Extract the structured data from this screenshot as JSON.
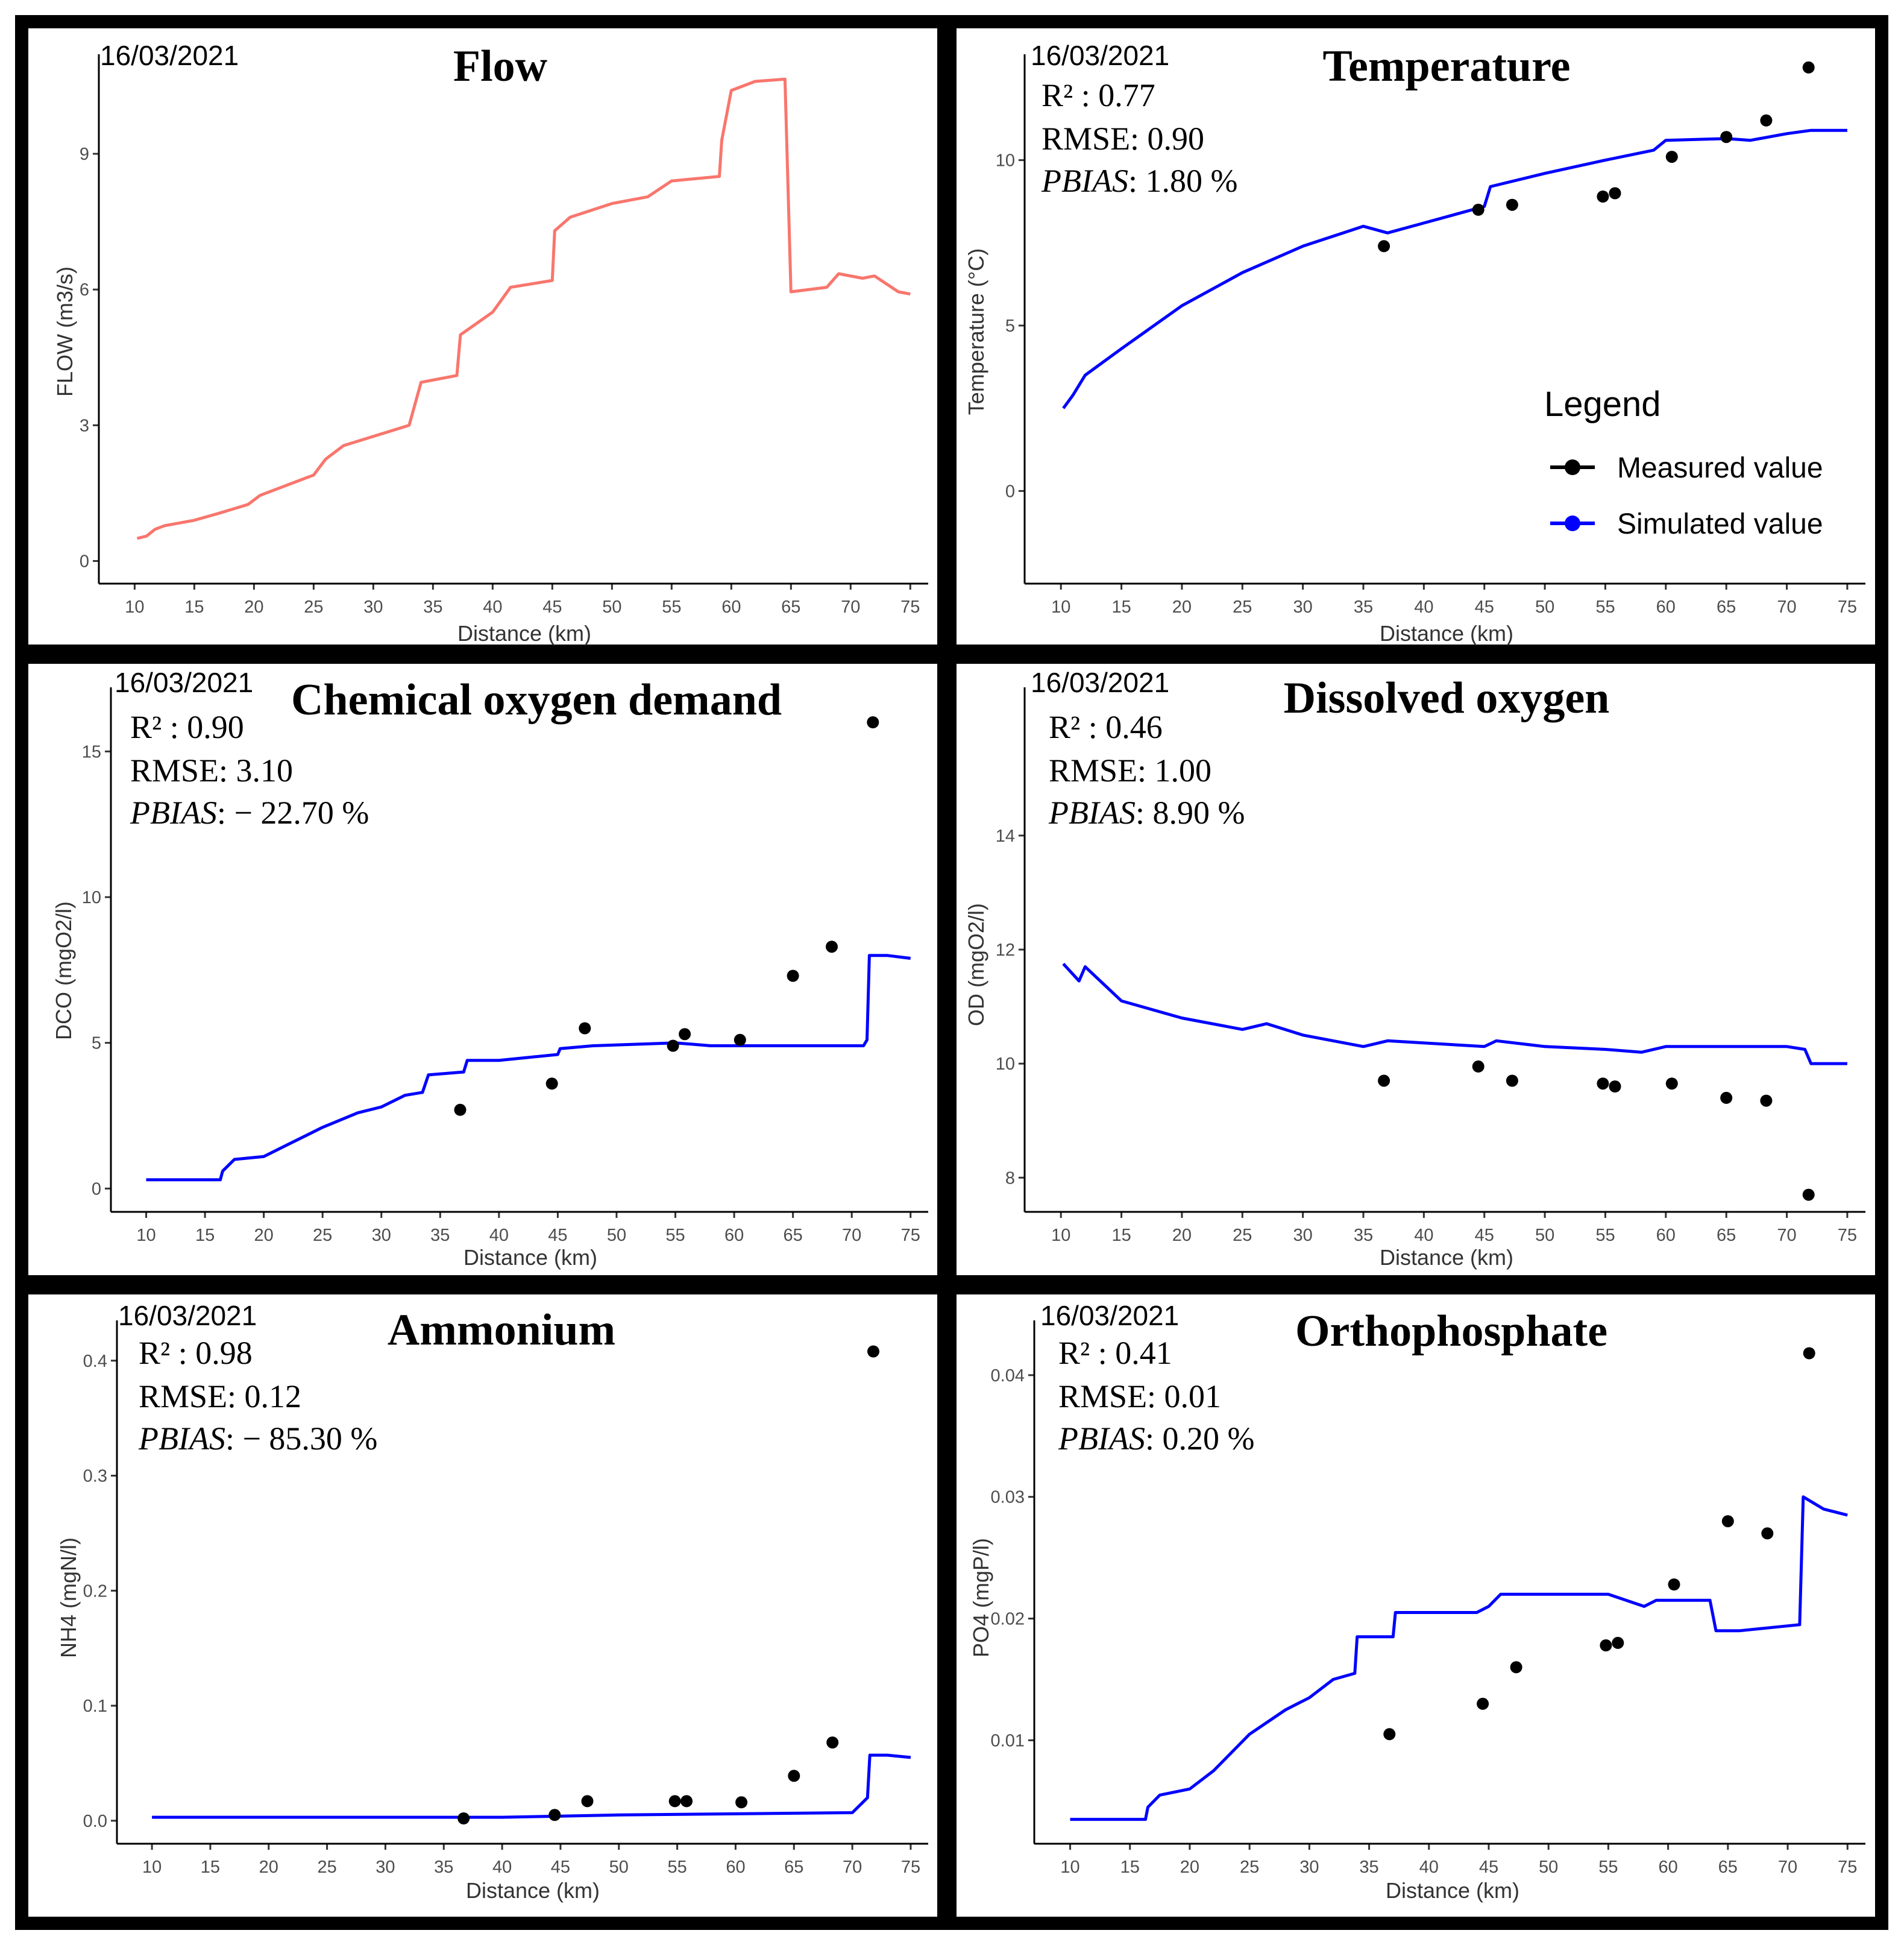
{
  "figure": {
    "background": "#ffffff",
    "border_color": "#000000",
    "simulated_color": "#0000ff",
    "flow_color": "#f8766d",
    "measured_color": "#000000",
    "legend": {
      "title": "Legend",
      "measured_label": "Measured value",
      "simulated_label": "Simulated value"
    }
  },
  "chart_data": [
    {
      "id": "flow",
      "type": "line",
      "title": "Flow",
      "date": "16/03/2021",
      "xlabel": "Distance (km)",
      "ylabel": "FLOW (m3/s)",
      "xlim": [
        7,
        76.5
      ],
      "ylim": [
        -0.5,
        11.2
      ],
      "xticks": [
        10,
        15,
        20,
        25,
        30,
        35,
        40,
        45,
        50,
        55,
        60,
        65,
        70,
        75
      ],
      "yticks": [
        0,
        3,
        6,
        9
      ],
      "stats": null,
      "simulated": [
        [
          10.2,
          0.5
        ],
        [
          11,
          0.55
        ],
        [
          11.7,
          0.7
        ],
        [
          12.5,
          0.78
        ],
        [
          15,
          0.9
        ],
        [
          17,
          1.05
        ],
        [
          19.5,
          1.25
        ],
        [
          20.5,
          1.45
        ],
        [
          25,
          1.9
        ],
        [
          26,
          2.25
        ],
        [
          27.5,
          2.55
        ],
        [
          33,
          3.0
        ],
        [
          34,
          3.95
        ],
        [
          37,
          4.1
        ],
        [
          37.3,
          5.0
        ],
        [
          40,
          5.5
        ],
        [
          41.5,
          6.05
        ],
        [
          45,
          6.2
        ],
        [
          45.2,
          7.3
        ],
        [
          46.5,
          7.6
        ],
        [
          50,
          7.9
        ],
        [
          53,
          8.05
        ],
        [
          55,
          8.4
        ],
        [
          59,
          8.5
        ],
        [
          59.2,
          9.3
        ],
        [
          60,
          10.4
        ],
        [
          62,
          10.6
        ],
        [
          64.5,
          10.65
        ],
        [
          65,
          5.95
        ],
        [
          68,
          6.05
        ],
        [
          69,
          6.35
        ],
        [
          71,
          6.25
        ],
        [
          72,
          6.3
        ],
        [
          74,
          5.95
        ],
        [
          75,
          5.9
        ]
      ],
      "measured": []
    },
    {
      "id": "temperature",
      "type": "line+scatter",
      "title": "Temperature",
      "date": "16/03/2021",
      "xlabel": "Distance (km)",
      "ylabel": "Temperature (°C)",
      "xlim": [
        7,
        76.5
      ],
      "ylim": [
        -2.8,
        13.2
      ],
      "xticks": [
        10,
        15,
        20,
        25,
        30,
        35,
        40,
        45,
        50,
        55,
        60,
        65,
        70,
        75
      ],
      "yticks": [
        0,
        5,
        10
      ],
      "stats": {
        "r2": "R² : 0.77",
        "rmse": "RMSE: 0.90",
        "pbias_label": "PBIAS",
        "pbias_value": ": 1.80 %"
      },
      "simulated": [
        [
          10.2,
          2.5
        ],
        [
          11,
          2.9
        ],
        [
          12,
          3.5
        ],
        [
          15,
          4.3
        ],
        [
          20,
          5.6
        ],
        [
          25,
          6.6
        ],
        [
          30,
          7.4
        ],
        [
          35,
          8.0
        ],
        [
          37,
          7.8
        ],
        [
          40,
          8.1
        ],
        [
          45,
          8.6
        ],
        [
          45.5,
          9.2
        ],
        [
          50,
          9.6
        ],
        [
          55,
          10.0
        ],
        [
          59,
          10.3
        ],
        [
          60,
          10.6
        ],
        [
          65,
          10.65
        ],
        [
          67,
          10.6
        ],
        [
          70,
          10.8
        ],
        [
          72,
          10.9
        ],
        [
          75,
          10.9
        ]
      ],
      "measured": [
        [
          36.7,
          7.4
        ],
        [
          44.5,
          8.5
        ],
        [
          47.3,
          8.65
        ],
        [
          54.8,
          8.9
        ],
        [
          55.8,
          9.0
        ],
        [
          60.5,
          10.1
        ],
        [
          65,
          10.7
        ],
        [
          68.3,
          11.2
        ],
        [
          71.8,
          12.8
        ]
      ]
    },
    {
      "id": "cod",
      "type": "line+scatter",
      "title": "Chemical  oxygen  demand",
      "date": "16/03/2021",
      "xlabel": "Distance (km)",
      "ylabel": "DCO (mgO2/l)",
      "xlim": [
        7,
        76.5
      ],
      "ylim": [
        -0.8,
        17.2
      ],
      "xticks": [
        10,
        15,
        20,
        25,
        30,
        35,
        40,
        45,
        50,
        55,
        60,
        65,
        70,
        75
      ],
      "yticks": [
        0,
        5,
        10,
        15
      ],
      "stats": {
        "r2": "R² : 0.90",
        "rmse": "RMSE: 3.10",
        "pbias_label": "PBIAS",
        "pbias_value": ": − 22.70 %"
      },
      "simulated": [
        [
          10,
          0.3
        ],
        [
          16.3,
          0.3
        ],
        [
          16.5,
          0.6
        ],
        [
          17.5,
          1.0
        ],
        [
          20,
          1.1
        ],
        [
          22,
          1.5
        ],
        [
          25,
          2.1
        ],
        [
          28,
          2.6
        ],
        [
          30,
          2.8
        ],
        [
          32,
          3.2
        ],
        [
          33.5,
          3.3
        ],
        [
          34,
          3.9
        ],
        [
          37,
          4.0
        ],
        [
          37.3,
          4.4
        ],
        [
          40,
          4.4
        ],
        [
          45,
          4.6
        ],
        [
          45.2,
          4.8
        ],
        [
          48,
          4.9
        ],
        [
          55,
          5.0
        ],
        [
          58,
          4.9
        ],
        [
          60,
          4.9
        ],
        [
          71,
          4.9
        ],
        [
          71.3,
          5.1
        ],
        [
          71.5,
          8.0
        ],
        [
          73,
          8.0
        ],
        [
          75,
          7.9
        ]
      ],
      "measured": [
        [
          36.7,
          2.7
        ],
        [
          44.5,
          3.6
        ],
        [
          47.3,
          5.5
        ],
        [
          54.8,
          4.9
        ],
        [
          55.8,
          5.3
        ],
        [
          60.5,
          5.1
        ],
        [
          65,
          7.3
        ],
        [
          68.3,
          8.3
        ],
        [
          71.8,
          16.0
        ]
      ]
    },
    {
      "id": "do",
      "type": "line+scatter",
      "title": "Dissolved  oxygen",
      "date": "16/03/2021",
      "xlabel": "Distance (km)",
      "ylabel": "OD (mgO2/l)",
      "xlim": [
        7,
        76.5
      ],
      "ylim": [
        7.4,
        16.6
      ],
      "xticks": [
        10,
        15,
        20,
        25,
        30,
        35,
        40,
        45,
        50,
        55,
        60,
        65,
        70,
        75
      ],
      "yticks": [
        8,
        10,
        12,
        14
      ],
      "stats": {
        "r2": "R² : 0.46",
        "rmse": "RMSE: 1.00",
        "pbias_label": "PBIAS",
        "pbias_value": ": 8.90 %"
      },
      "simulated": [
        [
          10.2,
          11.75
        ],
        [
          11.5,
          11.45
        ],
        [
          12,
          11.7
        ],
        [
          15,
          11.1
        ],
        [
          20,
          10.8
        ],
        [
          25,
          10.6
        ],
        [
          27,
          10.7
        ],
        [
          30,
          10.5
        ],
        [
          35,
          10.3
        ],
        [
          37,
          10.4
        ],
        [
          45,
          10.3
        ],
        [
          46,
          10.4
        ],
        [
          50,
          10.3
        ],
        [
          55,
          10.25
        ],
        [
          58,
          10.2
        ],
        [
          60,
          10.3
        ],
        [
          70,
          10.3
        ],
        [
          71.5,
          10.25
        ],
        [
          72,
          10.0
        ],
        [
          75,
          10.0
        ]
      ],
      "measured": [
        [
          36.7,
          9.7
        ],
        [
          44.5,
          9.95
        ],
        [
          47.3,
          9.7
        ],
        [
          54.8,
          9.65
        ],
        [
          55.8,
          9.6
        ],
        [
          60.5,
          9.65
        ],
        [
          65,
          9.4
        ],
        [
          68.3,
          9.35
        ],
        [
          71.8,
          7.7
        ]
      ]
    },
    {
      "id": "ammonium",
      "type": "line+scatter",
      "title": "Ammonium",
      "date": "16/03/2021",
      "xlabel": "Distance (km)",
      "ylabel": "NH4 (mgN/l)",
      "xlim": [
        7,
        76.5
      ],
      "ylim": [
        -0.02,
        0.435
      ],
      "xticks": [
        10,
        15,
        20,
        25,
        30,
        35,
        40,
        45,
        50,
        55,
        60,
        65,
        70,
        75
      ],
      "yticks": [
        0.0,
        0.1,
        0.2,
        0.3,
        0.4
      ],
      "ytick_labels": [
        "0.0",
        "0.1",
        "0.2",
        "0.3",
        "0.4"
      ],
      "stats": {
        "r2": "R² : 0.98",
        "rmse": "RMSE: 0.12",
        "pbias_label": "PBIAS",
        "pbias_value": ": − 85.30 %"
      },
      "simulated": [
        [
          10,
          0.003
        ],
        [
          35,
          0.003
        ],
        [
          40,
          0.003
        ],
        [
          45,
          0.004
        ],
        [
          50,
          0.005
        ],
        [
          60,
          0.006
        ],
        [
          70,
          0.007
        ],
        [
          71.3,
          0.02
        ],
        [
          71.5,
          0.057
        ],
        [
          73,
          0.057
        ],
        [
          75,
          0.055
        ]
      ],
      "measured": [
        [
          36.7,
          0.002
        ],
        [
          44.5,
          0.005
        ],
        [
          47.3,
          0.017
        ],
        [
          54.8,
          0.017
        ],
        [
          55.8,
          0.017
        ],
        [
          60.5,
          0.016
        ],
        [
          65,
          0.039
        ],
        [
          68.3,
          0.068
        ],
        [
          71.8,
          0.408
        ]
      ]
    },
    {
      "id": "orthophosphate",
      "type": "line+scatter",
      "title": "Orthophosphate",
      "date": "16/03/2021",
      "xlabel": "Distance (km)",
      "ylabel": "PO4 (mgP/l)",
      "xlim": [
        7,
        76.5
      ],
      "ylim": [
        0.0015,
        0.0445
      ],
      "xticks": [
        10,
        15,
        20,
        25,
        30,
        35,
        40,
        45,
        50,
        55,
        60,
        65,
        70,
        75
      ],
      "yticks": [
        0.01,
        0.02,
        0.03,
        0.04
      ],
      "ytick_labels": [
        "0.01",
        "0.02",
        "0.03",
        "0.04"
      ],
      "stats": {
        "r2": "R² : 0.41",
        "rmse": "RMSE: 0.01",
        "pbias_label": "PBIAS",
        "pbias_value": ": 0.20 %"
      },
      "simulated": [
        [
          10,
          0.0035
        ],
        [
          16.3,
          0.0035
        ],
        [
          16.5,
          0.0045
        ],
        [
          17.5,
          0.0055
        ],
        [
          20,
          0.006
        ],
        [
          22,
          0.0075
        ],
        [
          25,
          0.0105
        ],
        [
          28,
          0.0125
        ],
        [
          30,
          0.0135
        ],
        [
          32,
          0.015
        ],
        [
          33.8,
          0.0155
        ],
        [
          34,
          0.0185
        ],
        [
          37,
          0.0185
        ],
        [
          37.2,
          0.0205
        ],
        [
          40,
          0.0205
        ],
        [
          44,
          0.0205
        ],
        [
          45,
          0.021
        ],
        [
          46,
          0.022
        ],
        [
          50,
          0.022
        ],
        [
          55,
          0.022
        ],
        [
          58,
          0.021
        ],
        [
          59,
          0.0215
        ],
        [
          63.5,
          0.0215
        ],
        [
          64,
          0.019
        ],
        [
          66,
          0.019
        ],
        [
          69,
          0.0193
        ],
        [
          71,
          0.0195
        ],
        [
          71.3,
          0.03
        ],
        [
          73,
          0.029
        ],
        [
          75,
          0.0285
        ]
      ],
      "measured": [
        [
          36.7,
          0.0105
        ],
        [
          44.5,
          0.013
        ],
        [
          47.3,
          0.016
        ],
        [
          54.8,
          0.0178
        ],
        [
          55.8,
          0.018
        ],
        [
          60.5,
          0.0228
        ],
        [
          65,
          0.028
        ],
        [
          68.3,
          0.027
        ],
        [
          71.8,
          0.0418
        ]
      ]
    }
  ]
}
